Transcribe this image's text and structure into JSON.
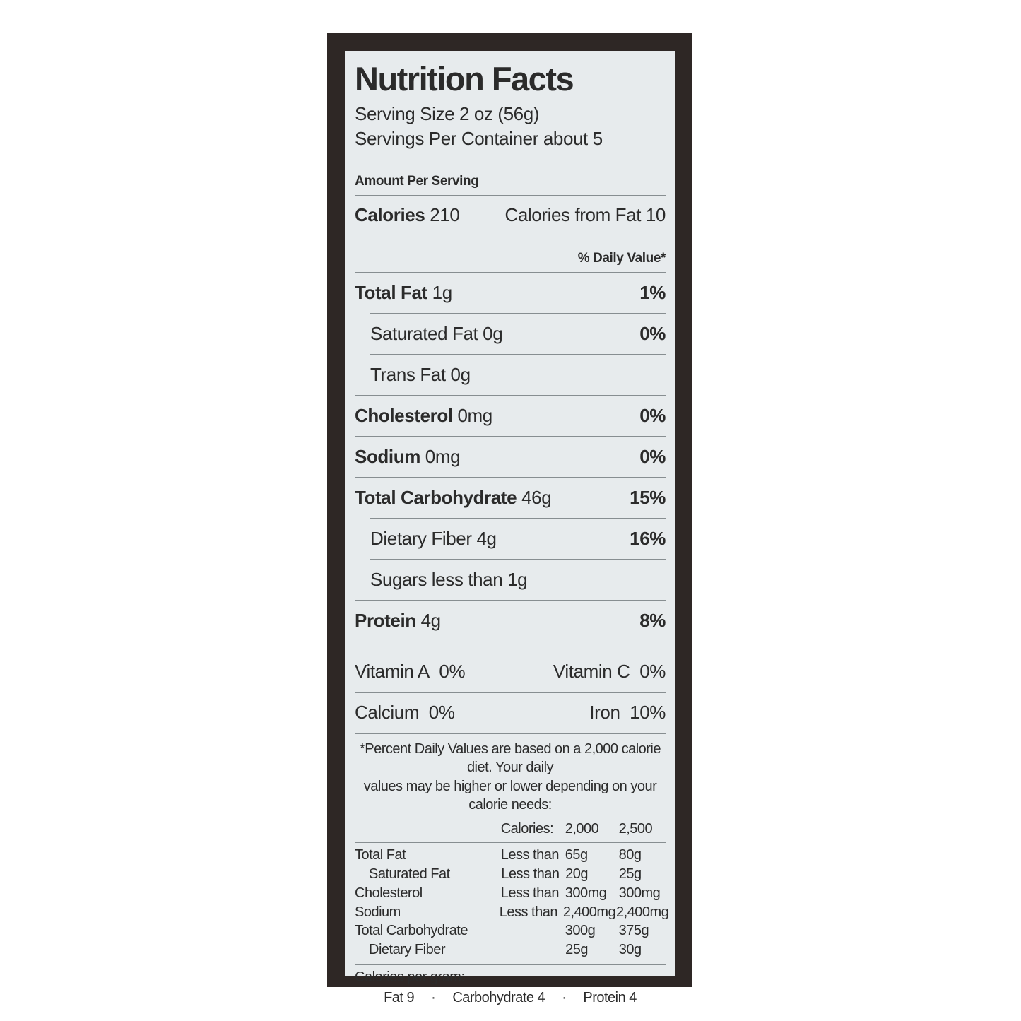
{
  "colors": {
    "page_bg": "#ffffff",
    "frame": "#2e2725",
    "label_bg": "#e7ebed",
    "text": "#2b2b2b",
    "divider": "#878e91",
    "bar": "#1c1917"
  },
  "label": {
    "title": "Nutrition Facts",
    "serving_size": "Serving Size 2 oz (56g)",
    "servings_per_container": "Servings Per Container about 5",
    "amount_per_serving": "Amount Per Serving",
    "calories_label": "Calories",
    "calories_value": "210",
    "calories_from_fat": "Calories from Fat 10",
    "daily_value_header": "% Daily Value*",
    "rows": [
      {
        "label": "Total Fat",
        "amount": "1g",
        "dv": "1%"
      },
      {
        "label": "Saturated Fat",
        "amount": "0g",
        "dv": "0%"
      },
      {
        "label": "Trans Fat",
        "amount": "0g",
        "dv": ""
      },
      {
        "label": "Cholesterol",
        "amount": "0mg",
        "dv": "0%"
      },
      {
        "label": "Sodium",
        "amount": "0mg",
        "dv": "0%"
      },
      {
        "label": "Total Carbohydrate",
        "amount": "46g",
        "dv": "15%"
      },
      {
        "label": "Dietary Fiber",
        "amount": "4g",
        "dv": "16%"
      },
      {
        "label": "Sugars less than",
        "amount": "1g",
        "dv": ""
      },
      {
        "label": "Protein",
        "amount": "4g",
        "dv": "8%"
      }
    ],
    "vitamins": [
      {
        "left_label": "Vitamin A",
        "left_value": "0%",
        "right_label": "Vitamin C",
        "right_value": "0%"
      },
      {
        "left_label": "Calcium",
        "left_value": "0%",
        "right_label": "Iron",
        "right_value": "10%"
      }
    ],
    "footnote_line1": "*Percent Daily Values are based on a 2,000 calorie diet. Your daily",
    "footnote_line2": "values may be higher or lower depending on your calorie needs:",
    "dv_table": {
      "header": {
        "calories_label": "Calories:",
        "col_2000": "2,000",
        "col_2500": "2,500"
      },
      "rows": [
        {
          "label": "Total Fat",
          "qual": "Less than",
          "c2000": "65g",
          "c2500": "80g"
        },
        {
          "label": "Saturated Fat",
          "qual": "Less than",
          "c2000": "20g",
          "c2500": "25g"
        },
        {
          "label": "Cholesterol",
          "qual": "Less than",
          "c2000": "300mg",
          "c2500": "300mg"
        },
        {
          "label": "Sodium",
          "qual": "Less than",
          "c2000": "2,400mg",
          "c2500": "2,400mg"
        },
        {
          "label": "Total Carbohydrate",
          "qual": "",
          "c2000": "300g",
          "c2500": "375g"
        },
        {
          "label": "Dietary Fiber",
          "qual": "",
          "c2000": "25g",
          "c2500": "30g"
        }
      ]
    },
    "calories_per_gram_label": "Calories per gram:",
    "cpg_items": [
      "Fat 9",
      "Carbohydrate 4",
      "Protein 4"
    ],
    "cpg_separator": "·"
  }
}
